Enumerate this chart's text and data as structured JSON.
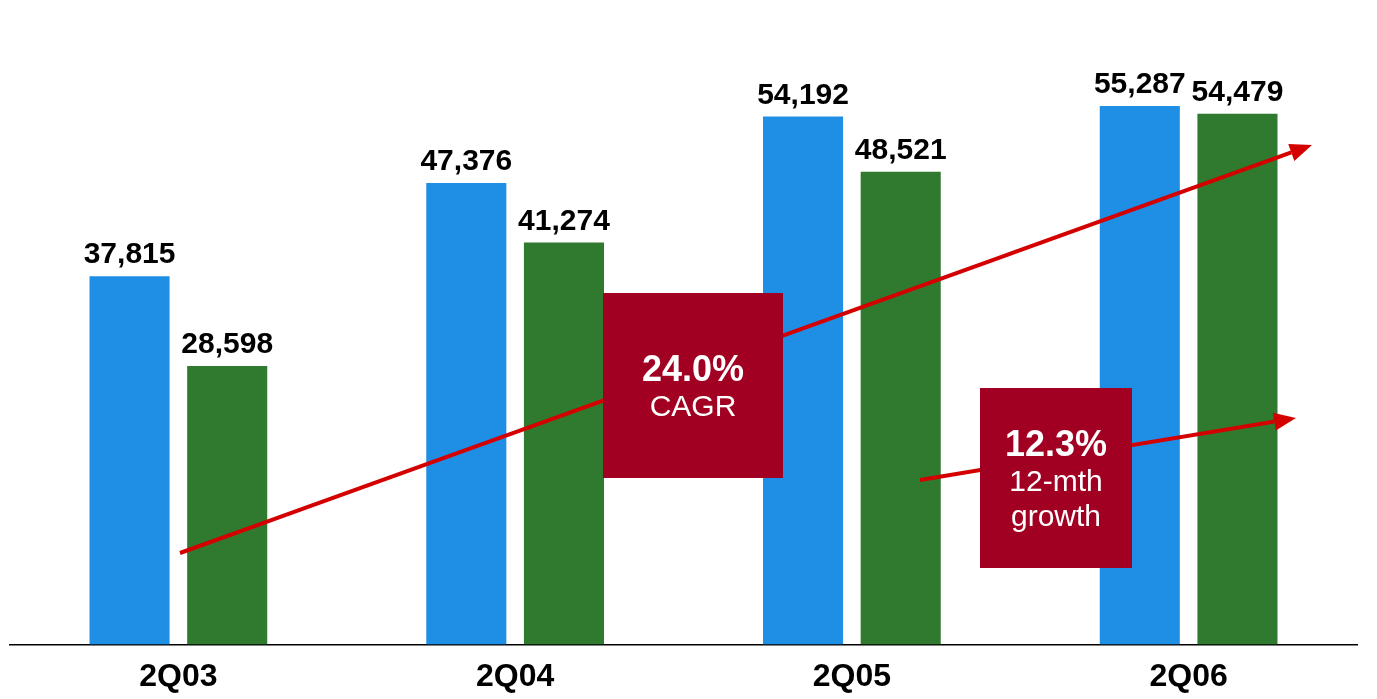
{
  "chart_data": {
    "type": "bar",
    "categories": [
      "2Q03",
      "2Q04",
      "2Q05",
      "2Q06"
    ],
    "series": [
      {
        "color": "#1f8fe6",
        "values": [
          37815,
          47376,
          54192,
          55287
        ],
        "value_labels": [
          "37,815",
          "47,376",
          "54,192",
          "55,287"
        ]
      },
      {
        "color": "#2f7a2f",
        "values": [
          28598,
          41274,
          48521,
          54479
        ],
        "value_labels": [
          "28,598",
          "41,274",
          "48,521",
          "54,479"
        ]
      }
    ],
    "grid": false,
    "legend": false,
    "tick_labels": "x",
    "annotations": [
      "24.0%\nCAGR",
      "12.3%\n12-mth growth"
    ]
  }
}
